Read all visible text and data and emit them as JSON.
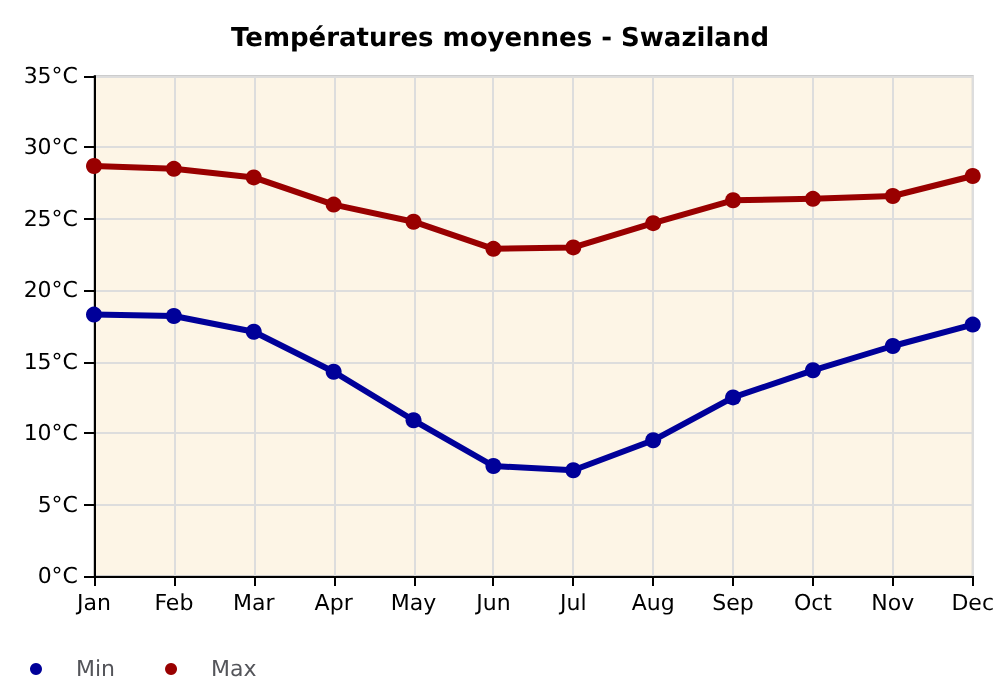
{
  "chart_data": {
    "type": "line",
    "title": "Températures moyennes - Swaziland",
    "categories": [
      "Jan",
      "Feb",
      "Mar",
      "Apr",
      "May",
      "Jun",
      "Jul",
      "Aug",
      "Sep",
      "Oct",
      "Nov",
      "Dec"
    ],
    "series": [
      {
        "name": "Min",
        "color": "#000099",
        "values": [
          18.3,
          18.2,
          17.1,
          14.3,
          10.9,
          7.7,
          7.4,
          9.5,
          12.5,
          14.4,
          16.1,
          17.6
        ]
      },
      {
        "name": "Max",
        "color": "#990000",
        "values": [
          28.7,
          28.5,
          27.9,
          26.0,
          24.8,
          22.9,
          23.0,
          24.7,
          26.3,
          26.4,
          26.6,
          28.0
        ]
      }
    ],
    "ylim": [
      0,
      35
    ],
    "yticks": [
      {
        "value": 0,
        "label": "0°C"
      },
      {
        "value": 5,
        "label": "5°C"
      },
      {
        "value": 10,
        "label": "10°C"
      },
      {
        "value": 15,
        "label": "15°C"
      },
      {
        "value": 20,
        "label": "20°C"
      },
      {
        "value": 25,
        "label": "25°C"
      },
      {
        "value": 30,
        "label": "30°C"
      },
      {
        "value": 35,
        "label": "35°C"
      }
    ],
    "grid": true,
    "legend": "bottom left",
    "marker": "circle",
    "line_style": "solid"
  }
}
